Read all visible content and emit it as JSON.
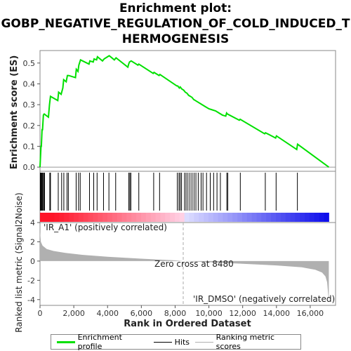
{
  "title_line1": "Enrichment plot:",
  "title_line2": "GOBP_NEGATIVE_REGULATION_OF_COLD_INDUCED_T",
  "title_line3": "HERMOGENESIS",
  "colors": {
    "enrichment": "#00e000",
    "hits": "#000000",
    "metric": "#b0b0b0",
    "pos_label": "#e02020",
    "neg_label": "#2020d0"
  },
  "labels": {
    "pos_label": "'IR_A1' (positively correlated)",
    "neg_label": "'IR_DMSO' (negatively correlated)",
    "zero_cross": "Zero cross at 8480"
  },
  "legend": {
    "enrichment": "Enrichment profile",
    "hits": "Hits",
    "metric": "Ranking metric scores"
  },
  "chart_data": {
    "type": "line",
    "xlabel": "Rank in Ordered Dataset",
    "ylabel_top": "Enrichment score (ES)",
    "ylabel_bottom": "Ranked list metric (Signal2Noise)",
    "xlim": [
      0,
      17500
    ],
    "x_ticks": [
      "0",
      "2,000",
      "4,000",
      "6,000",
      "8,000",
      "10,000",
      "12,000",
      "14,000",
      "16,000"
    ],
    "x_tick_values": [
      0,
      2000,
      4000,
      6000,
      8000,
      10000,
      12000,
      14000,
      16000
    ],
    "es_ylim": [
      -0.02,
      0.56
    ],
    "es_ticks": [
      "0.0",
      "0.1",
      "0.2",
      "0.3",
      "0.4",
      "0.5"
    ],
    "es_tick_values": [
      0.0,
      0.1,
      0.2,
      0.3,
      0.4,
      0.5
    ],
    "metric_ylim": [
      -4.6,
      4.0
    ],
    "metric_ticks": [
      "-4",
      "-2",
      "0",
      "2",
      "4"
    ],
    "metric_tick_values": [
      -4,
      -2,
      0,
      2,
      4
    ],
    "zero_cross": 8480,
    "enrichment_profile": {
      "x": [
        0,
        60,
        80,
        120,
        150,
        200,
        250,
        500,
        560,
        620,
        1050,
        1100,
        1250,
        1350,
        1400,
        1550,
        1620,
        1700,
        2100,
        2150,
        2250,
        2300,
        2400,
        2900,
        2950,
        3150,
        3200,
        3350,
        3400,
        3700,
        3800,
        4000,
        4100,
        4400,
        4500,
        5200,
        5250,
        5300,
        5400,
        5800,
        5850,
        6700,
        6750,
        7050,
        7100,
        8100,
        8150,
        8250,
        8300,
        8400,
        8500,
        8600,
        8700,
        8800,
        8900,
        9000,
        9100,
        9200,
        9300,
        9500,
        9600,
        9800,
        10000,
        10200,
        10400,
        10600,
        10800,
        11000,
        11050,
        11100,
        11800,
        11850,
        13300,
        13350,
        13950,
        14000,
        15200,
        15250,
        17100
      ],
      "y": [
        0.0,
        0.1,
        0.1,
        0.18,
        0.18,
        0.25,
        0.255,
        0.24,
        0.3,
        0.34,
        0.32,
        0.36,
        0.35,
        0.38,
        0.42,
        0.41,
        0.44,
        0.44,
        0.43,
        0.47,
        0.46,
        0.49,
        0.515,
        0.495,
        0.51,
        0.505,
        0.52,
        0.515,
        0.53,
        0.51,
        0.52,
        0.53,
        0.535,
        0.515,
        0.525,
        0.48,
        0.495,
        0.505,
        0.51,
        0.49,
        0.495,
        0.45,
        0.455,
        0.44,
        0.445,
        0.39,
        0.39,
        0.38,
        0.385,
        0.375,
        0.37,
        0.36,
        0.355,
        0.345,
        0.34,
        0.335,
        0.325,
        0.32,
        0.315,
        0.305,
        0.3,
        0.29,
        0.28,
        0.275,
        0.27,
        0.26,
        0.25,
        0.245,
        0.26,
        0.255,
        0.225,
        0.23,
        0.16,
        0.165,
        0.14,
        0.15,
        0.085,
        0.11,
        0.0
      ]
    },
    "hits": [
      20,
      60,
      90,
      130,
      170,
      220,
      270,
      580,
      620,
      1080,
      1280,
      1410,
      1600,
      1680,
      2140,
      2280,
      2380,
      2930,
      3180,
      3380,
      3760,
      4080,
      4480,
      5260,
      5320,
      5380,
      5850,
      6730,
      7080,
      8130,
      8230,
      8300,
      8380,
      8560,
      8650,
      8760,
      8880,
      9000,
      9120,
      9230,
      9370,
      9540,
      9650,
      9860,
      10080,
      10280,
      10480,
      10680,
      11060,
      11120,
      11860,
      13340,
      13980,
      15240
    ],
    "metric_profile": {
      "x": [
        0,
        50,
        150,
        400,
        800,
        1500,
        2500,
        4000,
        6000,
        8000,
        8480,
        10000,
        12000,
        14000,
        15500,
        16300,
        16700,
        16900,
        17000,
        17100
      ],
      "y": [
        3.1,
        2.0,
        1.6,
        1.25,
        1.05,
        0.85,
        0.65,
        0.45,
        0.25,
        0.07,
        0.0,
        -0.12,
        -0.28,
        -0.45,
        -0.65,
        -0.9,
        -1.2,
        -1.6,
        -2.2,
        -4.2
      ]
    }
  }
}
